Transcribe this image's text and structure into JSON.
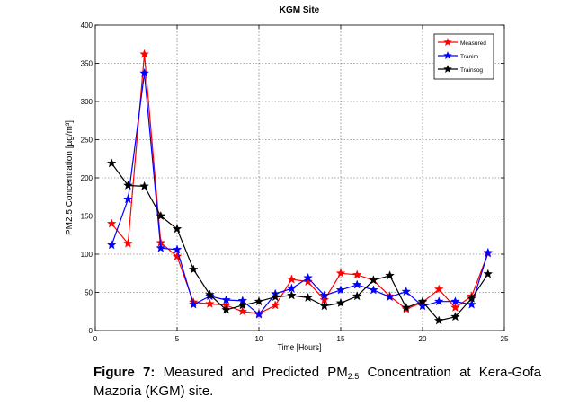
{
  "caption": {
    "figure_label": "Figure 7:",
    "text_part1": " Measured and Predicted PM",
    "subscript": "2.5",
    "text_part2": " Concentration at Kera-Gofa Mazoria (KGM) site."
  },
  "chart_data": {
    "type": "line",
    "title": "KGM Site",
    "xlabel": "Time [Hours]",
    "ylabel": "PM2.5 Concentration [µg/m³]",
    "xlim": [
      0,
      25
    ],
    "ylim": [
      0,
      400
    ],
    "xticks": [
      0,
      5,
      10,
      15,
      20,
      25
    ],
    "yticks": [
      0,
      50,
      100,
      150,
      200,
      250,
      300,
      350,
      400
    ],
    "grid": true,
    "legend_position": "top-right",
    "x": [
      1,
      2,
      3,
      4,
      5,
      6,
      7,
      8,
      9,
      10,
      11,
      12,
      13,
      14,
      15,
      16,
      17,
      18,
      19,
      20,
      21,
      22,
      23,
      24
    ],
    "series": [
      {
        "name": "Measured",
        "color": "#ff0000",
        "values": [
          140,
          114,
          362,
          115,
          97,
          37,
          35,
          33,
          25,
          22,
          33,
          67,
          64,
          40,
          75,
          73,
          66,
          45,
          28,
          37,
          54,
          30,
          45,
          101
        ]
      },
      {
        "name": "Tranim",
        "color": "#0000ff",
        "values": [
          112,
          172,
          337,
          108,
          106,
          34,
          45,
          40,
          39,
          21,
          48,
          55,
          69,
          46,
          53,
          60,
          53,
          44,
          51,
          32,
          38,
          38,
          34,
          102
        ]
      },
      {
        "name": "Trainsog",
        "color": "#000000",
        "values": [
          219,
          190,
          189,
          150,
          133,
          80,
          47,
          27,
          33,
          38,
          44,
          46,
          43,
          32,
          36,
          45,
          66,
          72,
          30,
          38,
          13,
          18,
          42,
          74
        ]
      }
    ]
  }
}
